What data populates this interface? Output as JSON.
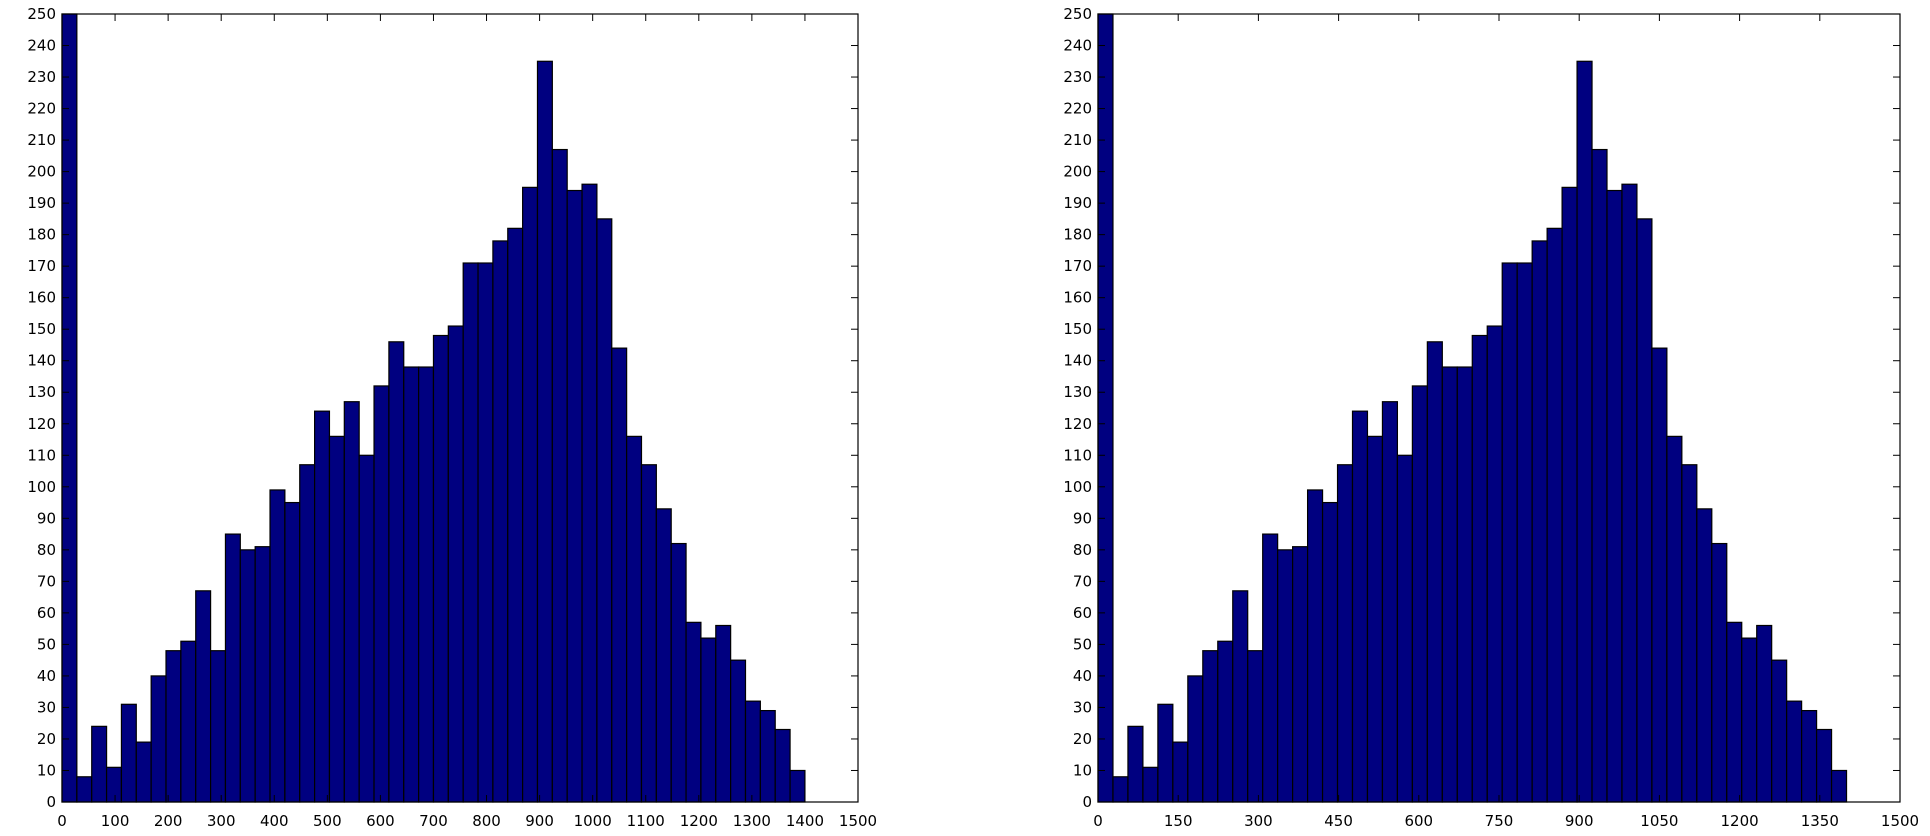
{
  "chart_data": [
    {
      "type": "bar",
      "title": "",
      "xlabel": "",
      "ylabel": "",
      "xlim": [
        0,
        1500
      ],
      "ylim": [
        0,
        250
      ],
      "x_ticks": [
        0,
        100,
        200,
        300,
        400,
        500,
        600,
        700,
        800,
        900,
        1000,
        1100,
        1200,
        1300,
        1400,
        1500
      ],
      "x_tick_labels": [
        "0",
        "100",
        "200",
        "300",
        "400",
        "500",
        "600",
        "700",
        "800",
        "900",
        "1000",
        "1100",
        "1200",
        "1300",
        "1400",
        "1500"
      ],
      "y_ticks": [
        0,
        10,
        20,
        30,
        40,
        50,
        60,
        70,
        80,
        90,
        100,
        110,
        120,
        130,
        140,
        150,
        160,
        170,
        180,
        190,
        200,
        210,
        220,
        230,
        240,
        250
      ],
      "y_tick_labels": [
        "0",
        "10",
        "20",
        "30",
        "40",
        "50",
        "60",
        "70",
        "80",
        "90",
        "100",
        "110",
        "120",
        "130",
        "140",
        "150",
        "160",
        "170",
        "180",
        "190",
        "200",
        "210",
        "220",
        "230",
        "240",
        "250"
      ],
      "grid": false,
      "bin_width": 28,
      "bin_starts": [
        0,
        28,
        56,
        84,
        112,
        140,
        168,
        196,
        224,
        252,
        280,
        308,
        336,
        364,
        392,
        420,
        448,
        476,
        504,
        532,
        560,
        588,
        616,
        644,
        672,
        700,
        728,
        756,
        784,
        812,
        840,
        868,
        896,
        924,
        952,
        980,
        1008,
        1036,
        1064,
        1092,
        1120,
        1148,
        1176,
        1204,
        1232,
        1260,
        1288,
        1316,
        1344,
        1372
      ],
      "values": [
        250,
        8,
        24,
        11,
        31,
        19,
        40,
        48,
        51,
        67,
        48,
        85,
        80,
        81,
        99,
        95,
        107,
        124,
        116,
        127,
        110,
        132,
        146,
        138,
        138,
        148,
        151,
        171,
        171,
        178,
        182,
        195,
        235,
        207,
        194,
        196,
        185,
        144,
        116,
        107,
        93,
        82,
        57,
        52,
        56,
        45,
        32,
        29,
        23,
        10
      ],
      "bar_color": "#000080",
      "edge_color": "#000000"
    },
    {
      "type": "bar",
      "title": "",
      "xlabel": "",
      "ylabel": "",
      "xlim": [
        0,
        1500
      ],
      "ylim": [
        0,
        250
      ],
      "x_ticks": [
        0,
        150,
        300,
        450,
        600,
        750,
        900,
        1050,
        1200,
        1350,
        1500
      ],
      "x_tick_labels": [
        "0",
        "150",
        "300",
        "450",
        "600",
        "750",
        "900",
        "1050",
        "1200",
        "1350",
        "1500"
      ],
      "y_ticks": [
        0,
        10,
        20,
        30,
        40,
        50,
        60,
        70,
        80,
        90,
        100,
        110,
        120,
        130,
        140,
        150,
        160,
        170,
        180,
        190,
        200,
        210,
        220,
        230,
        240,
        250
      ],
      "y_tick_labels": [
        "0",
        "10",
        "20",
        "30",
        "40",
        "50",
        "60",
        "70",
        "80",
        "90",
        "100",
        "110",
        "120",
        "130",
        "140",
        "150",
        "160",
        "170",
        "180",
        "190",
        "200",
        "210",
        "220",
        "230",
        "240",
        "250"
      ],
      "grid": false,
      "bin_width": 28,
      "bin_starts": [
        0,
        28,
        56,
        84,
        112,
        140,
        168,
        196,
        224,
        252,
        280,
        308,
        336,
        364,
        392,
        420,
        448,
        476,
        504,
        532,
        560,
        588,
        616,
        644,
        672,
        700,
        728,
        756,
        784,
        812,
        840,
        868,
        896,
        924,
        952,
        980,
        1008,
        1036,
        1064,
        1092,
        1120,
        1148,
        1176,
        1204,
        1232,
        1260,
        1288,
        1316,
        1344,
        1372
      ],
      "values": [
        250,
        8,
        24,
        11,
        31,
        19,
        40,
        48,
        51,
        67,
        48,
        85,
        80,
        81,
        99,
        95,
        107,
        124,
        116,
        127,
        110,
        132,
        146,
        138,
        138,
        148,
        151,
        171,
        171,
        178,
        182,
        195,
        235,
        207,
        194,
        196,
        185,
        144,
        116,
        107,
        93,
        82,
        57,
        52,
        56,
        45,
        32,
        29,
        23,
        10
      ],
      "bar_color": "#000080",
      "edge_color": "#000000"
    }
  ]
}
